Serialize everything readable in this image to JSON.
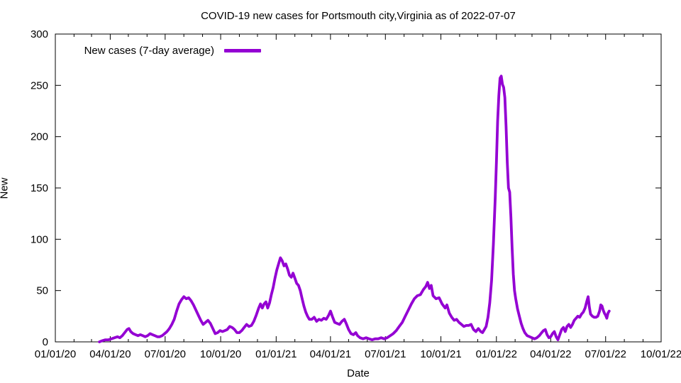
{
  "title": "COVID-19 new cases for Portsmouth city,Virginia as of 2022-07-07",
  "axes": {
    "xlabel": "Date",
    "ylabel": "New",
    "x_tick_labels": [
      "01/01/20",
      "04/01/20",
      "07/01/20",
      "10/01/20",
      "01/01/21",
      "04/01/21",
      "07/01/21",
      "10/01/21",
      "01/01/22",
      "04/01/22",
      "07/01/22",
      "10/01/22"
    ],
    "y_ticks": [
      0,
      50,
      100,
      150,
      200,
      250,
      300
    ]
  },
  "colors": {
    "line": "#9400d3",
    "frame": "#000000",
    "background": "#ffffff"
  },
  "chart_data": {
    "type": "line",
    "title": "COVID-19 new cases for Portsmouth city,Virginia as of 2022-07-07",
    "xlabel": "Date",
    "ylabel": "New",
    "ylim": [
      0,
      300
    ],
    "x_range": [
      "2020-01-01",
      "2022-10-01"
    ],
    "x_tick_interval": "3 months",
    "x_minor_tick_interval": "1 month",
    "grid": false,
    "legend_position": "top-left-inside",
    "series": [
      {
        "name": "New cases (7-day average)",
        "color": "#9400d3",
        "points": [
          [
            "2020-03-14",
            0
          ],
          [
            "2020-03-18",
            1
          ],
          [
            "2020-03-24",
            2
          ],
          [
            "2020-03-29",
            2
          ],
          [
            "2020-04-03",
            3
          ],
          [
            "2020-04-08",
            4
          ],
          [
            "2020-04-13",
            5
          ],
          [
            "2020-04-17",
            4
          ],
          [
            "2020-04-21",
            6
          ],
          [
            "2020-04-25",
            9
          ],
          [
            "2020-04-29",
            12
          ],
          [
            "2020-05-02",
            13
          ],
          [
            "2020-05-05",
            10
          ],
          [
            "2020-05-09",
            8
          ],
          [
            "2020-05-13",
            7
          ],
          [
            "2020-05-17",
            6
          ],
          [
            "2020-05-21",
            7
          ],
          [
            "2020-05-25",
            6
          ],
          [
            "2020-05-29",
            5
          ],
          [
            "2020-06-02",
            6
          ],
          [
            "2020-06-06",
            8
          ],
          [
            "2020-06-10",
            7
          ],
          [
            "2020-06-14",
            6
          ],
          [
            "2020-06-18",
            5
          ],
          [
            "2020-06-22",
            5
          ],
          [
            "2020-06-26",
            6
          ],
          [
            "2020-06-30",
            8
          ],
          [
            "2020-07-04",
            10
          ],
          [
            "2020-07-08",
            13
          ],
          [
            "2020-07-12",
            17
          ],
          [
            "2020-07-16",
            22
          ],
          [
            "2020-07-20",
            30
          ],
          [
            "2020-07-24",
            37
          ],
          [
            "2020-07-28",
            41
          ],
          [
            "2020-08-01",
            44
          ],
          [
            "2020-08-05",
            42
          ],
          [
            "2020-08-09",
            43
          ],
          [
            "2020-08-13",
            40
          ],
          [
            "2020-08-17",
            36
          ],
          [
            "2020-08-21",
            31
          ],
          [
            "2020-08-25",
            26
          ],
          [
            "2020-08-29",
            21
          ],
          [
            "2020-09-02",
            17
          ],
          [
            "2020-09-06",
            19
          ],
          [
            "2020-09-10",
            21
          ],
          [
            "2020-09-14",
            18
          ],
          [
            "2020-09-18",
            13
          ],
          [
            "2020-09-22",
            8
          ],
          [
            "2020-09-26",
            9
          ],
          [
            "2020-09-30",
            11
          ],
          [
            "2020-10-04",
            10
          ],
          [
            "2020-10-08",
            11
          ],
          [
            "2020-10-12",
            12
          ],
          [
            "2020-10-16",
            15
          ],
          [
            "2020-10-20",
            14
          ],
          [
            "2020-10-24",
            12
          ],
          [
            "2020-10-28",
            9
          ],
          [
            "2020-11-01",
            9
          ],
          [
            "2020-11-05",
            11
          ],
          [
            "2020-11-09",
            14
          ],
          [
            "2020-11-13",
            17
          ],
          [
            "2020-11-17",
            15
          ],
          [
            "2020-11-21",
            16
          ],
          [
            "2020-11-25",
            20
          ],
          [
            "2020-11-29",
            26
          ],
          [
            "2020-12-03",
            33
          ],
          [
            "2020-12-06",
            37
          ],
          [
            "2020-12-09",
            33
          ],
          [
            "2020-12-12",
            37
          ],
          [
            "2020-12-15",
            39
          ],
          [
            "2020-12-18",
            33
          ],
          [
            "2020-12-21",
            38
          ],
          [
            "2020-12-24",
            46
          ],
          [
            "2020-12-27",
            53
          ],
          [
            "2020-12-30",
            62
          ],
          [
            "2021-01-02",
            70
          ],
          [
            "2021-01-05",
            76
          ],
          [
            "2021-01-08",
            82
          ],
          [
            "2021-01-11",
            79
          ],
          [
            "2021-01-14",
            74
          ],
          [
            "2021-01-17",
            76
          ],
          [
            "2021-01-20",
            71
          ],
          [
            "2021-01-23",
            65
          ],
          [
            "2021-01-26",
            63
          ],
          [
            "2021-01-29",
            67
          ],
          [
            "2021-02-01",
            62
          ],
          [
            "2021-02-04",
            57
          ],
          [
            "2021-02-07",
            55
          ],
          [
            "2021-02-10",
            50
          ],
          [
            "2021-02-13",
            42
          ],
          [
            "2021-02-16",
            35
          ],
          [
            "2021-02-19",
            29
          ],
          [
            "2021-02-22",
            25
          ],
          [
            "2021-02-25",
            22
          ],
          [
            "2021-03-01",
            22
          ],
          [
            "2021-03-05",
            24
          ],
          [
            "2021-03-09",
            20
          ],
          [
            "2021-03-13",
            22
          ],
          [
            "2021-03-17",
            21
          ],
          [
            "2021-03-21",
            23
          ],
          [
            "2021-03-25",
            22
          ],
          [
            "2021-03-29",
            26
          ],
          [
            "2021-04-01",
            30
          ],
          [
            "2021-04-04",
            25
          ],
          [
            "2021-04-08",
            19
          ],
          [
            "2021-04-12",
            18
          ],
          [
            "2021-04-16",
            17
          ],
          [
            "2021-04-20",
            20
          ],
          [
            "2021-04-24",
            22
          ],
          [
            "2021-04-27",
            18
          ],
          [
            "2021-05-01",
            12
          ],
          [
            "2021-05-05",
            8
          ],
          [
            "2021-05-09",
            7
          ],
          [
            "2021-05-13",
            9
          ],
          [
            "2021-05-16",
            6
          ],
          [
            "2021-05-20",
            4
          ],
          [
            "2021-05-25",
            3
          ],
          [
            "2021-05-30",
            4
          ],
          [
            "2021-06-04",
            3
          ],
          [
            "2021-06-09",
            2
          ],
          [
            "2021-06-14",
            3
          ],
          [
            "2021-06-19",
            3
          ],
          [
            "2021-06-24",
            4
          ],
          [
            "2021-06-29",
            3
          ],
          [
            "2021-07-04",
            4
          ],
          [
            "2021-07-09",
            6
          ],
          [
            "2021-07-14",
            8
          ],
          [
            "2021-07-19",
            11
          ],
          [
            "2021-07-24",
            15
          ],
          [
            "2021-07-29",
            19
          ],
          [
            "2021-08-03",
            25
          ],
          [
            "2021-08-08",
            31
          ],
          [
            "2021-08-13",
            37
          ],
          [
            "2021-08-18",
            42
          ],
          [
            "2021-08-23",
            45
          ],
          [
            "2021-08-28",
            46
          ],
          [
            "2021-09-02",
            51
          ],
          [
            "2021-09-06",
            54
          ],
          [
            "2021-09-09",
            58
          ],
          [
            "2021-09-12",
            52
          ],
          [
            "2021-09-15",
            55
          ],
          [
            "2021-09-18",
            45
          ],
          [
            "2021-09-23",
            42
          ],
          [
            "2021-09-28",
            43
          ],
          [
            "2021-10-03",
            37
          ],
          [
            "2021-10-08",
            33
          ],
          [
            "2021-10-11",
            36
          ],
          [
            "2021-10-15",
            28
          ],
          [
            "2021-10-19",
            24
          ],
          [
            "2021-10-23",
            21
          ],
          [
            "2021-10-27",
            22
          ],
          [
            "2021-10-31",
            19
          ],
          [
            "2021-11-04",
            17
          ],
          [
            "2021-11-08",
            15
          ],
          [
            "2021-11-12",
            16
          ],
          [
            "2021-11-16",
            16
          ],
          [
            "2021-11-20",
            17
          ],
          [
            "2021-11-24",
            12
          ],
          [
            "2021-11-28",
            10
          ],
          [
            "2021-12-02",
            13
          ],
          [
            "2021-12-06",
            10
          ],
          [
            "2021-12-09",
            9
          ],
          [
            "2021-12-12",
            12
          ],
          [
            "2021-12-15",
            15
          ],
          [
            "2021-12-18",
            24
          ],
          [
            "2021-12-21",
            38
          ],
          [
            "2021-12-24",
            60
          ],
          [
            "2021-12-27",
            95
          ],
          [
            "2021-12-30",
            140
          ],
          [
            "2022-01-01",
            175
          ],
          [
            "2022-01-03",
            215
          ],
          [
            "2022-01-05",
            240
          ],
          [
            "2022-01-07",
            257
          ],
          [
            "2022-01-09",
            259
          ],
          [
            "2022-01-11",
            251
          ],
          [
            "2022-01-13",
            248
          ],
          [
            "2022-01-15",
            238
          ],
          [
            "2022-01-17",
            210
          ],
          [
            "2022-01-19",
            175
          ],
          [
            "2022-01-21",
            150
          ],
          [
            "2022-01-23",
            146
          ],
          [
            "2022-01-25",
            122
          ],
          [
            "2022-01-27",
            92
          ],
          [
            "2022-01-29",
            66
          ],
          [
            "2022-01-31",
            50
          ],
          [
            "2022-02-02",
            42
          ],
          [
            "2022-02-05",
            32
          ],
          [
            "2022-02-08",
            25
          ],
          [
            "2022-02-11",
            18
          ],
          [
            "2022-02-14",
            13
          ],
          [
            "2022-02-17",
            9
          ],
          [
            "2022-02-21",
            6
          ],
          [
            "2022-02-25",
            5
          ],
          [
            "2022-03-01",
            4
          ],
          [
            "2022-03-05",
            3
          ],
          [
            "2022-03-09",
            4
          ],
          [
            "2022-03-13",
            6
          ],
          [
            "2022-03-17",
            9
          ],
          [
            "2022-03-20",
            11
          ],
          [
            "2022-03-23",
            12
          ],
          [
            "2022-03-26",
            7
          ],
          [
            "2022-03-29",
            4
          ],
          [
            "2022-04-01",
            5
          ],
          [
            "2022-04-04",
            8
          ],
          [
            "2022-04-07",
            10
          ],
          [
            "2022-04-10",
            5
          ],
          [
            "2022-04-13",
            2
          ],
          [
            "2022-04-16",
            7
          ],
          [
            "2022-04-19",
            12
          ],
          [
            "2022-04-22",
            14
          ],
          [
            "2022-04-25",
            10
          ],
          [
            "2022-04-28",
            15
          ],
          [
            "2022-05-01",
            17
          ],
          [
            "2022-05-04",
            14
          ],
          [
            "2022-05-07",
            17
          ],
          [
            "2022-05-10",
            21
          ],
          [
            "2022-05-13",
            23
          ],
          [
            "2022-05-16",
            25
          ],
          [
            "2022-05-19",
            24
          ],
          [
            "2022-05-22",
            27
          ],
          [
            "2022-05-25",
            29
          ],
          [
            "2022-05-28",
            33
          ],
          [
            "2022-05-31",
            40
          ],
          [
            "2022-06-02",
            44
          ],
          [
            "2022-06-04",
            34
          ],
          [
            "2022-06-06",
            27
          ],
          [
            "2022-06-09",
            25
          ],
          [
            "2022-06-12",
            24
          ],
          [
            "2022-06-15",
            24
          ],
          [
            "2022-06-18",
            25
          ],
          [
            "2022-06-21",
            30
          ],
          [
            "2022-06-23",
            36
          ],
          [
            "2022-06-25",
            35
          ],
          [
            "2022-06-27",
            31
          ],
          [
            "2022-06-29",
            28
          ],
          [
            "2022-07-01",
            26
          ],
          [
            "2022-07-03",
            23
          ],
          [
            "2022-07-05",
            28
          ],
          [
            "2022-07-07",
            30
          ]
        ]
      }
    ]
  }
}
